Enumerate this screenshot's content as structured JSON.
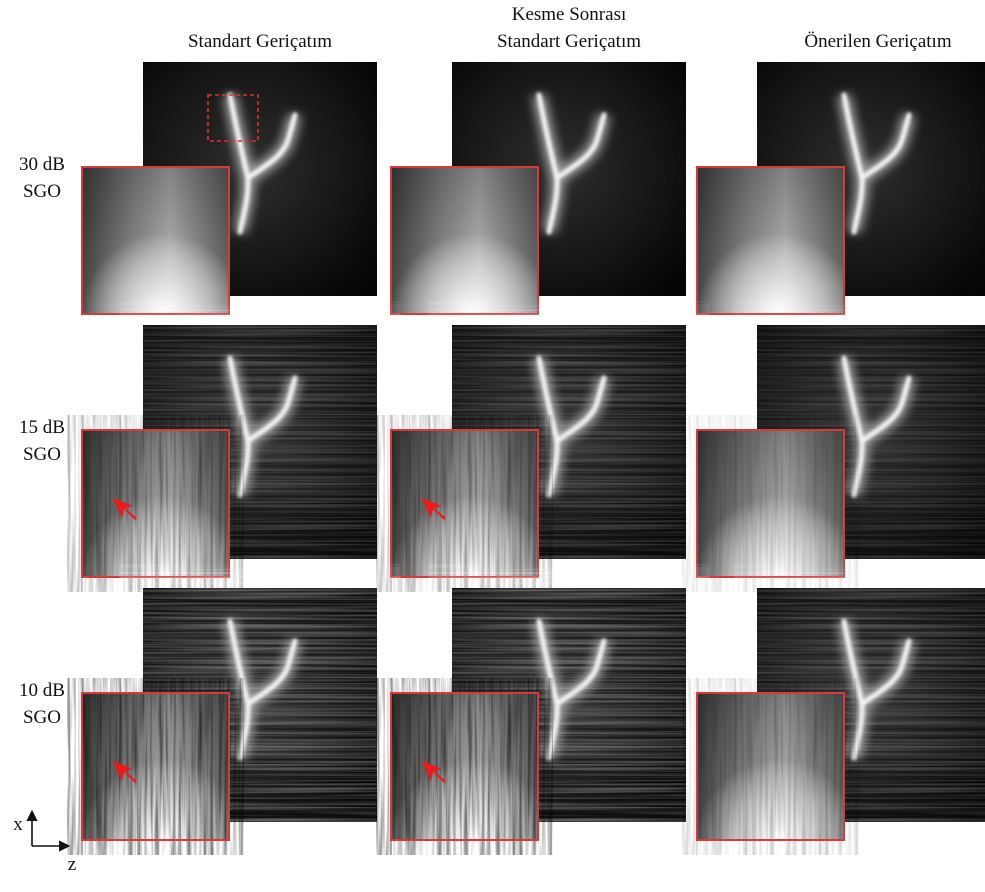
{
  "columns": [
    {
      "lines": [
        "Standart Geriçatım"
      ]
    },
    {
      "lines": [
        "Kesme Sonrası",
        "Standart Geriçatım"
      ]
    },
    {
      "lines": [
        "Önerilen Geriçatım"
      ]
    }
  ],
  "rows": [
    {
      "lines": [
        "30 dB",
        "SGO"
      ]
    },
    {
      "lines": [
        "15 dB",
        "SGO"
      ]
    },
    {
      "lines": [
        "10 dB",
        "SGO"
      ]
    }
  ],
  "axes": {
    "vertical": "x",
    "horizontal": "z"
  }
}
